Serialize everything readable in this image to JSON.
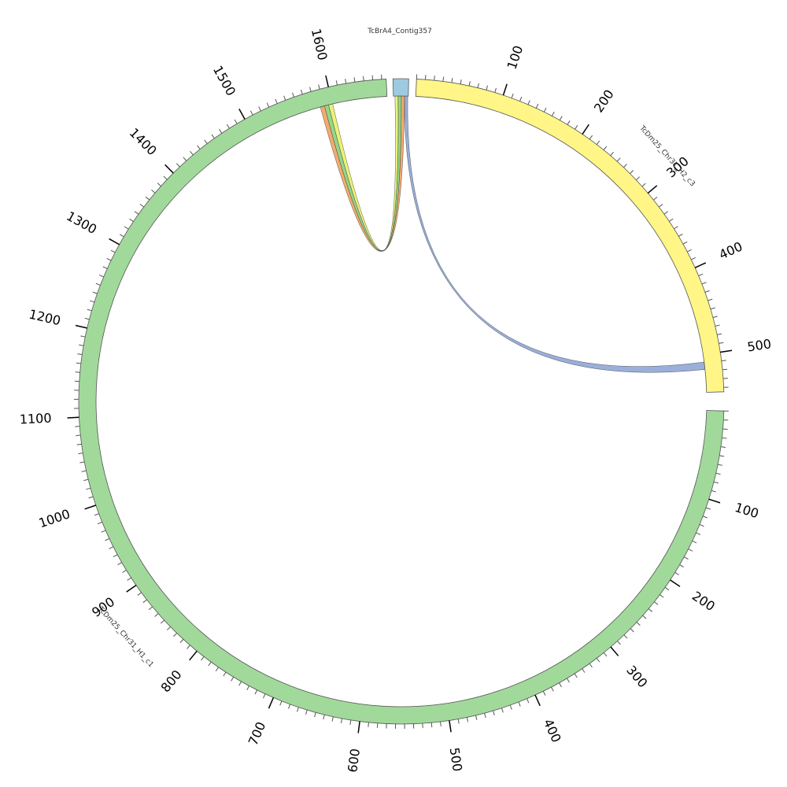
{
  "chart_data": {
    "type": "chord",
    "segments": [
      {
        "id": "contig",
        "label": "TcBrA4_Contig357",
        "color": "#9ecae1",
        "tick_labels": []
      },
      {
        "id": "h2",
        "label": "TcDm25_Chr31_H2_c3",
        "color": "#fff687",
        "tick_labels": [
          "100",
          "200",
          "300",
          "400",
          "500"
        ]
      },
      {
        "id": "h1",
        "label": "TcDm25_Chr31_H1_c1",
        "color": "#a1d99b",
        "tick_labels": [
          "100",
          "200",
          "300",
          "400",
          "500",
          "600",
          "700",
          "800",
          "900",
          "1000",
          "1100",
          "1200",
          "1300",
          "1400",
          "1500",
          "1600"
        ]
      }
    ],
    "links": [
      {
        "from": "contig",
        "to": "h1",
        "colors": [
          "#e8f06a",
          "#8bd17c",
          "#f4a15d"
        ]
      },
      {
        "from": "contig",
        "to": "h2",
        "colors": [
          "#8fa6d6",
          "#8fa6d6"
        ]
      }
    ]
  }
}
